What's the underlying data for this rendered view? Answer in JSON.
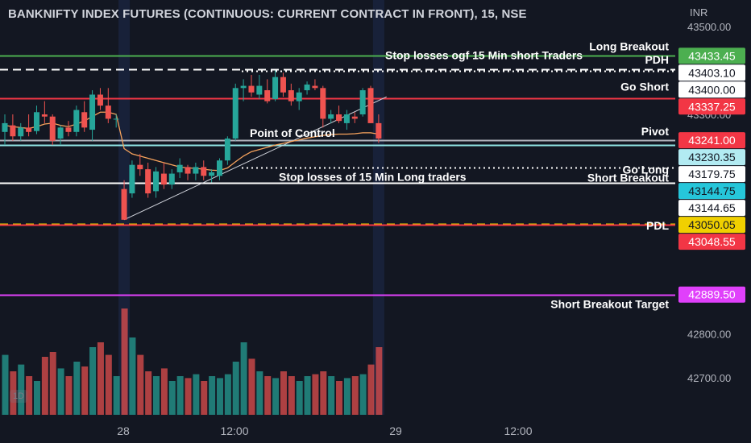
{
  "header": {
    "title": "BANKNIFTY INDEX FUTURES (CONTINUOUS: CURRENT CONTRACT IN FRONT), 15, NSE",
    "unit": "INR",
    "interval_badge": "1D"
  },
  "colors": {
    "background": "#131722",
    "up": "#26a69a",
    "down": "#ef5350",
    "text": "#ffffff",
    "axis_text": "#b2b5be",
    "green_line": "#4caf50",
    "red_line": "#f23645",
    "magenta_line": "#e040fb",
    "yellow_line": "#f0d000",
    "cyan_line": "#8fe3e3",
    "vwap": "#f7a35c",
    "session_band": "#1d2a4d"
  },
  "chart_data": {
    "type": "candlestick",
    "title": "BANKNIFTY INDEX FUTURES (CONTINUOUS: CURRENT CONTRACT IN FRONT), 15, NSE",
    "yaxis_unit": "INR",
    "y_ticks": [
      43500,
      43400,
      43300,
      42800,
      42700
    ],
    "x_ticks": [
      "28",
      "12:00",
      "29",
      "12:00"
    ],
    "candles": [
      {
        "o": 43260,
        "h": 43300,
        "l": 43230,
        "c": 43280
      },
      {
        "o": 43275,
        "h": 43300,
        "l": 43240,
        "c": 43250
      },
      {
        "o": 43250,
        "h": 43280,
        "l": 43240,
        "c": 43270
      },
      {
        "o": 43270,
        "h": 43300,
        "l": 43250,
        "c": 43260
      },
      {
        "o": 43262,
        "h": 43320,
        "l": 43255,
        "c": 43305
      },
      {
        "o": 43300,
        "h": 43330,
        "l": 43280,
        "c": 43295
      },
      {
        "o": 43295,
        "h": 43300,
        "l": 43230,
        "c": 43240
      },
      {
        "o": 43245,
        "h": 43275,
        "l": 43230,
        "c": 43270
      },
      {
        "o": 43270,
        "h": 43285,
        "l": 43250,
        "c": 43260
      },
      {
        "o": 43260,
        "h": 43320,
        "l": 43250,
        "c": 43310
      },
      {
        "o": 43305,
        "h": 43330,
        "l": 43260,
        "c": 43270
      },
      {
        "o": 43265,
        "h": 43355,
        "l": 43240,
        "c": 43345
      },
      {
        "o": 43345,
        "h": 43360,
        "l": 43310,
        "c": 43320
      },
      {
        "o": 43320,
        "h": 43360,
        "l": 43280,
        "c": 43290
      },
      {
        "o": 43290,
        "h": 43300,
        "l": 43270,
        "c": 43290
      },
      {
        "o": 43130,
        "h": 43150,
        "l": 43060,
        "c": 43060
      },
      {
        "o": 43120,
        "h": 43195,
        "l": 43110,
        "c": 43185
      },
      {
        "o": 43185,
        "h": 43210,
        "l": 43160,
        "c": 43175
      },
      {
        "o": 43175,
        "h": 43190,
        "l": 43110,
        "c": 43120
      },
      {
        "o": 43125,
        "h": 43180,
        "l": 43110,
        "c": 43170
      },
      {
        "o": 43165,
        "h": 43190,
        "l": 43130,
        "c": 43140
      },
      {
        "o": 43140,
        "h": 43175,
        "l": 43130,
        "c": 43165
      },
      {
        "o": 43168,
        "h": 43200,
        "l": 43155,
        "c": 43185
      },
      {
        "o": 43180,
        "h": 43185,
        "l": 43150,
        "c": 43165
      },
      {
        "o": 43165,
        "h": 43190,
        "l": 43150,
        "c": 43180
      },
      {
        "o": 43180,
        "h": 43195,
        "l": 43150,
        "c": 43160
      },
      {
        "o": 43160,
        "h": 43175,
        "l": 43145,
        "c": 43168
      },
      {
        "o": 43160,
        "h": 43200,
        "l": 43150,
        "c": 43195
      },
      {
        "o": 43195,
        "h": 43250,
        "l": 43185,
        "c": 43245
      },
      {
        "o": 43245,
        "h": 43370,
        "l": 43240,
        "c": 43360
      },
      {
        "o": 43360,
        "h": 43380,
        "l": 43330,
        "c": 43365
      },
      {
        "o": 43365,
        "h": 43390,
        "l": 43340,
        "c": 43350
      },
      {
        "o": 43345,
        "h": 43390,
        "l": 43335,
        "c": 43365
      },
      {
        "o": 43355,
        "h": 43380,
        "l": 43325,
        "c": 43330
      },
      {
        "o": 43335,
        "h": 43400,
        "l": 43330,
        "c": 43385
      },
      {
        "o": 43385,
        "h": 43395,
        "l": 43340,
        "c": 43350
      },
      {
        "o": 43355,
        "h": 43370,
        "l": 43320,
        "c": 43330
      },
      {
        "o": 43330,
        "h": 43360,
        "l": 43310,
        "c": 43350
      },
      {
        "o": 43355,
        "h": 43375,
        "l": 43345,
        "c": 43368
      },
      {
        "o": 43365,
        "h": 43380,
        "l": 43355,
        "c": 43360
      },
      {
        "o": 43360,
        "h": 43365,
        "l": 43270,
        "c": 43290
      },
      {
        "o": 43290,
        "h": 43310,
        "l": 43280,
        "c": 43300
      },
      {
        "o": 43300,
        "h": 43320,
        "l": 43280,
        "c": 43285
      },
      {
        "o": 43280,
        "h": 43310,
        "l": 43265,
        "c": 43300
      },
      {
        "o": 43295,
        "h": 43305,
        "l": 43280,
        "c": 43290
      },
      {
        "o": 43300,
        "h": 43360,
        "l": 43295,
        "c": 43355
      },
      {
        "o": 43360,
        "h": 43365,
        "l": 43280,
        "c": 43280
      },
      {
        "o": 43280,
        "h": 43300,
        "l": 43235,
        "c": 43245
      }
    ],
    "volumes": [
      62,
      45,
      52,
      40,
      35,
      60,
      65,
      48,
      40,
      55,
      50,
      70,
      75,
      62,
      40,
      110,
      80,
      62,
      45,
      40,
      48,
      35,
      40,
      38,
      42,
      35,
      40,
      38,
      42,
      55,
      75,
      58,
      45,
      40,
      38,
      45,
      40,
      35,
      40,
      42,
      45,
      40,
      35,
      38,
      40,
      42,
      52,
      70
    ],
    "vwap": [
      43275,
      43272,
      43270,
      43268,
      43272,
      43278,
      43280,
      43275,
      43272,
      43278,
      43285,
      43295,
      43305,
      43305,
      43300,
      43222,
      43210,
      43205,
      43200,
      43195,
      43190,
      43185,
      43180,
      43178,
      43177,
      43175,
      43173,
      43172,
      43178,
      43192,
      43205,
      43215,
      43220,
      43225,
      43230,
      43234,
      43238,
      43242,
      43246,
      43249,
      43252,
      43254,
      43255,
      43255,
      43256,
      43258,
      43258,
      43255
    ],
    "levels": [
      {
        "label": "Long Breakout",
        "price": 43433.45,
        "price_label": "43433.45",
        "color": "#4caf50",
        "style": "solid",
        "badge_bg": "#4caf50",
        "badge_fg": "#ffffff"
      },
      {
        "label": "PDH",
        "price": 43403.1,
        "price_label": "43403.10",
        "color": "#ffffff",
        "style": "dashed",
        "badge_bg": "#ffffff",
        "badge_fg": "#131722"
      },
      {
        "label": "Stop losses ogf 15 Min short Traders",
        "price": 43400.0,
        "price_label": "43400.00",
        "color": "#ffffff",
        "style": "dotted",
        "badge_bg": "#ffffff",
        "badge_fg": "#131722"
      },
      {
        "label": "Go Short",
        "price": 43337.25,
        "price_label": "43337.25",
        "color": "#f23645",
        "style": "solid",
        "badge_bg": "#f23645",
        "badge_fg": "#ffffff"
      },
      {
        "label": "Pivot",
        "price": 43241.0,
        "price_label": "43241.00",
        "color": "#b2b5be",
        "style": "solid",
        "badge_bg": "#f23645",
        "badge_fg": "#ffffff"
      },
      {
        "label": "Point of Control",
        "price": 43230.35,
        "price_label": "43230.35",
        "color": "#8fe3e3",
        "style": "solid",
        "badge_bg": "#b2ebf2",
        "badge_fg": "#131722"
      },
      {
        "label": "Go Long",
        "price": 43179.75,
        "price_label": "43179.75",
        "color": "#ffffff",
        "style": "dotted",
        "badge_bg": "#ffffff",
        "badge_fg": "#131722"
      },
      {
        "label": "Stop losses of 15 Min Long traders",
        "price": 43144.75,
        "price_label": "43144.75",
        "color": "#ffffff",
        "style": "solid",
        "badge_bg": "#26c6da",
        "badge_fg": "#131722"
      },
      {
        "label": "Short Breakout",
        "price": 43144.65,
        "price_label": "43144.65",
        "color": "#ffffff",
        "style": "solid",
        "badge_bg": "#ffffff",
        "badge_fg": "#131722"
      },
      {
        "label": "",
        "price": 43050.05,
        "price_label": "43050.05",
        "color": "#f0d000",
        "style": "dashed",
        "badge_bg": "#f0d000",
        "badge_fg": "#131722"
      },
      {
        "label": "PDL",
        "price": 43048.55,
        "price_label": "43048.55",
        "color": "#f23645",
        "style": "solid",
        "badge_bg": "#f23645",
        "badge_fg": "#ffffff"
      },
      {
        "label": "Short Breakout Target",
        "price": 42889.5,
        "price_label": "42889.50",
        "color": "#e040fb",
        "style": "solid",
        "badge_bg": "#e040fb",
        "badge_fg": "#ffffff"
      }
    ],
    "trendlines": [
      {
        "from": {
          "bar": 15,
          "price": 43060
        },
        "to": {
          "bar": 48,
          "price": 43340
        }
      }
    ],
    "highlighted_bars": [
      15,
      47
    ]
  }
}
